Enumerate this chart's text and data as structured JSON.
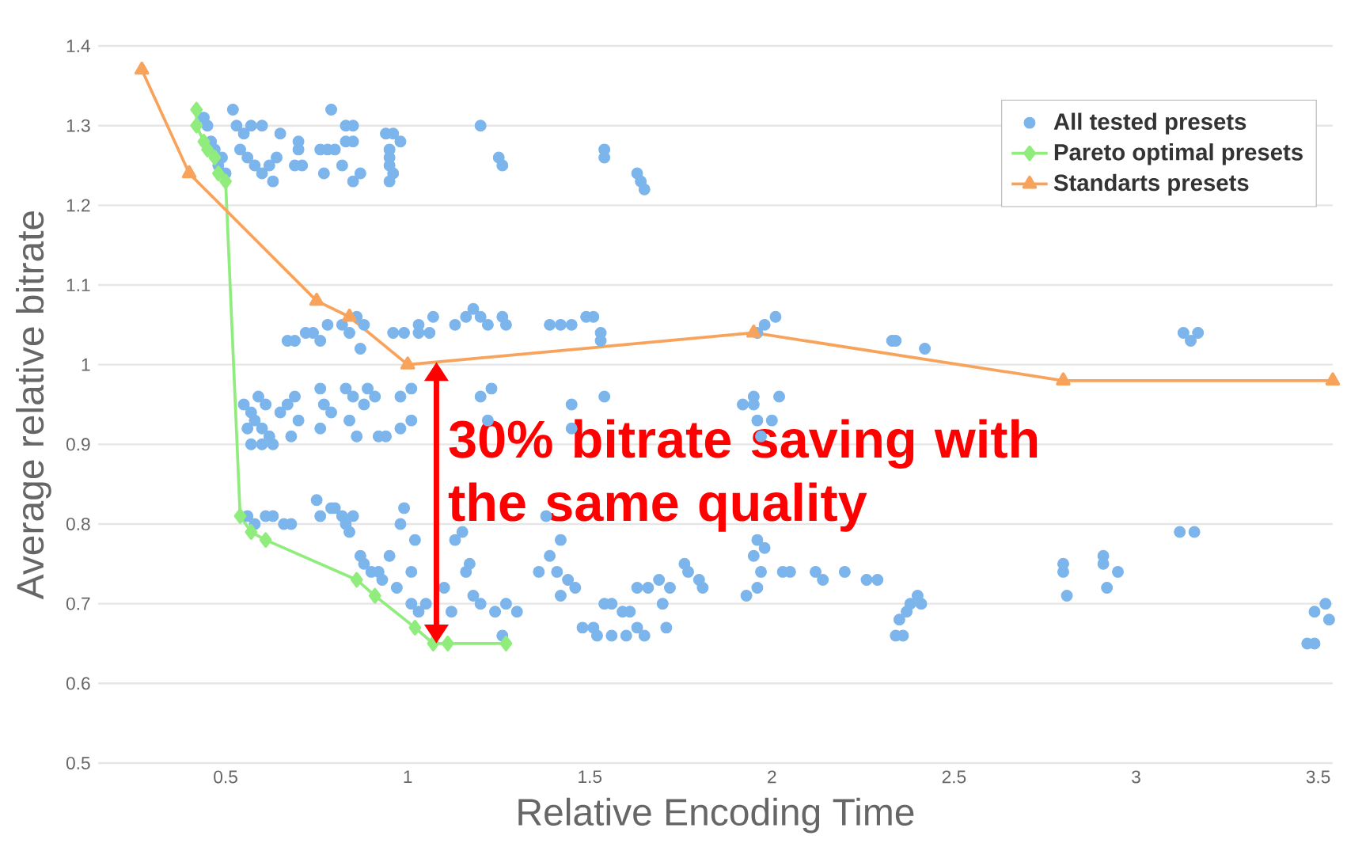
{
  "chart_data": {
    "type": "scatter",
    "xlabel": "Relative Encoding Time",
    "ylabel": "Average relative bitrate",
    "xlim": [
      0.15,
      3.54
    ],
    "ylim": [
      0.5,
      1.4
    ],
    "xticks": [
      0.5,
      1,
      1.5,
      2,
      2.5,
      3,
      3.5
    ],
    "yticks": [
      0.5,
      0.6,
      0.7,
      0.8,
      0.9,
      1,
      1.1,
      1.2,
      1.3,
      1.4
    ],
    "grid": "y",
    "legend": "top right",
    "annotations": [
      "30% bitrate saving with the same quality"
    ],
    "series": [
      {
        "name": "All tested presets",
        "marker": "circle",
        "color": "#7cb5ec",
        "x": [
          0.44,
          0.45,
          0.46,
          0.47,
          0.48,
          0.5,
          0.49,
          0.52,
          0.53,
          0.55,
          0.57,
          0.6,
          0.54,
          0.56,
          0.58,
          0.6,
          0.62,
          0.64,
          0.63,
          0.65,
          0.7,
          0.7,
          0.71,
          0.69,
          0.76,
          0.78,
          0.8,
          0.77,
          0.79,
          0.83,
          0.85,
          0.83,
          0.85,
          0.82,
          0.85,
          0.87,
          0.94,
          0.96,
          0.95,
          0.95,
          0.95,
          0.96,
          0.95,
          0.98,
          1.2,
          1.25,
          1.26,
          1.54,
          1.54,
          1.63,
          1.64,
          1.65,
          0.67,
          0.69,
          0.72,
          0.74,
          0.76,
          0.78,
          0.82,
          0.84,
          0.86,
          0.88,
          0.87,
          0.96,
          0.99,
          1.03,
          1.03,
          1.06,
          1.07,
          1.13,
          1.16,
          1.18,
          1.2,
          1.22,
          1.26,
          1.27,
          1.39,
          1.42,
          1.45,
          1.49,
          1.51,
          1.53,
          1.53,
          1.96,
          1.98,
          2.01,
          2.33,
          2.34,
          2.42,
          3.13,
          3.15,
          3.17,
          0.55,
          0.57,
          0.59,
          0.61,
          0.56,
          0.58,
          0.6,
          0.62,
          0.57,
          0.6,
          0.63,
          0.65,
          0.67,
          0.69,
          0.7,
          0.68,
          0.76,
          0.77,
          0.76,
          0.79,
          0.83,
          0.85,
          0.84,
          0.86,
          0.88,
          0.89,
          0.91,
          0.92,
          0.94,
          0.98,
          1.01,
          1.01,
          0.98,
          1.2,
          1.23,
          1.22,
          1.45,
          1.45,
          1.54,
          1.92,
          1.95,
          1.95,
          2.02,
          1.96,
          2.0,
          1.97,
          0.56,
          0.58,
          0.61,
          0.63,
          0.66,
          0.68,
          0.75,
          0.76,
          0.79,
          0.8,
          0.82,
          0.83,
          0.85,
          0.84,
          0.87,
          0.88,
          0.9,
          0.92,
          0.93,
          0.95,
          0.98,
          0.99,
          1.02,
          0.97,
          1.01,
          1.01,
          1.03,
          1.05,
          1.08,
          1.12,
          1.1,
          1.13,
          1.15,
          1.17,
          1.16,
          1.18,
          1.2,
          1.24,
          1.27,
          1.3,
          1.26,
          1.36,
          1.39,
          1.41,
          1.42,
          1.42,
          1.44,
          1.46,
          1.38,
          1.48,
          1.51,
          1.52,
          1.54,
          1.56,
          1.59,
          1.61,
          1.63,
          1.56,
          1.6,
          1.65,
          1.63,
          1.66,
          1.69,
          1.7,
          1.71,
          1.72,
          1.76,
          1.77,
          1.8,
          1.81,
          1.93,
          1.96,
          1.95,
          1.96,
          1.98,
          1.97,
          2.03,
          2.05,
          2.12,
          2.14,
          2.2,
          2.26,
          2.29,
          2.34,
          2.36,
          2.35,
          2.37,
          2.38,
          2.4,
          2.41,
          2.8,
          2.8,
          2.81,
          2.91,
          2.91,
          2.92,
          2.95,
          3.12,
          3.16,
          3.47,
          3.49,
          3.49,
          3.52,
          3.53
        ],
        "values": [
          1.31,
          1.3,
          1.28,
          1.27,
          1.25,
          1.24,
          1.26,
          1.32,
          1.3,
          1.29,
          1.3,
          1.3,
          1.27,
          1.26,
          1.25,
          1.24,
          1.25,
          1.26,
          1.23,
          1.29,
          1.28,
          1.27,
          1.25,
          1.25,
          1.27,
          1.27,
          1.27,
          1.24,
          1.32,
          1.3,
          1.3,
          1.28,
          1.28,
          1.25,
          1.23,
          1.24,
          1.29,
          1.29,
          1.27,
          1.26,
          1.25,
          1.24,
          1.23,
          1.28,
          1.3,
          1.26,
          1.25,
          1.27,
          1.26,
          1.24,
          1.23,
          1.22,
          1.03,
          1.03,
          1.04,
          1.04,
          1.03,
          1.05,
          1.05,
          1.04,
          1.06,
          1.05,
          1.02,
          1.04,
          1.04,
          1.04,
          1.05,
          1.04,
          1.06,
          1.05,
          1.06,
          1.07,
          1.06,
          1.05,
          1.06,
          1.05,
          1.05,
          1.05,
          1.05,
          1.06,
          1.06,
          1.04,
          1.03,
          1.04,
          1.05,
          1.06,
          1.03,
          1.03,
          1.02,
          1.04,
          1.03,
          1.04,
          0.95,
          0.94,
          0.96,
          0.95,
          0.92,
          0.93,
          0.92,
          0.91,
          0.9,
          0.9,
          0.9,
          0.94,
          0.95,
          0.96,
          0.93,
          0.91,
          0.97,
          0.95,
          0.92,
          0.94,
          0.97,
          0.96,
          0.93,
          0.91,
          0.95,
          0.97,
          0.96,
          0.91,
          0.91,
          0.96,
          0.97,
          0.93,
          0.92,
          0.96,
          0.97,
          0.93,
          0.95,
          0.92,
          0.96,
          0.95,
          0.95,
          0.96,
          0.96,
          0.93,
          0.93,
          0.91,
          0.81,
          0.8,
          0.81,
          0.81,
          0.8,
          0.8,
          0.83,
          0.81,
          0.82,
          0.82,
          0.81,
          0.8,
          0.81,
          0.79,
          0.76,
          0.75,
          0.74,
          0.74,
          0.73,
          0.76,
          0.8,
          0.82,
          0.78,
          0.72,
          0.74,
          0.7,
          0.69,
          0.7,
          null,
          0.69,
          0.72,
          0.78,
          0.79,
          0.75,
          0.74,
          0.71,
          0.7,
          0.69,
          0.7,
          0.69,
          0.66,
          0.74,
          0.76,
          0.74,
          0.78,
          0.71,
          0.73,
          0.72,
          0.81,
          0.67,
          0.67,
          0.66,
          0.7,
          0.7,
          0.69,
          0.69,
          0.67,
          0.66,
          0.66,
          0.66,
          0.72,
          0.72,
          0.73,
          0.7,
          0.67,
          0.72,
          0.75,
          0.74,
          0.73,
          0.72,
          0.71,
          0.72,
          0.76,
          0.78,
          0.77,
          0.74,
          0.74,
          0.74,
          0.74,
          0.73,
          0.74,
          0.73,
          0.73,
          0.66,
          0.66,
          0.68,
          0.69,
          0.7,
          0.71,
          0.7,
          0.75,
          0.74,
          0.71,
          0.76,
          0.75,
          0.72,
          0.74,
          0.79,
          0.79,
          0.65,
          0.65,
          0.69,
          0.7,
          0.68
        ]
      },
      {
        "name": "Pareto optimal presets",
        "type": "line",
        "marker": "diamond",
        "color": "#90ed7d",
        "x": [
          0.42,
          0.42,
          0.44,
          0.45,
          0.47,
          0.48,
          0.5,
          0.54,
          0.57,
          0.61,
          0.86,
          0.91,
          1.02,
          1.07,
          1.11,
          1.27
        ],
        "values": [
          1.32,
          1.3,
          1.28,
          1.27,
          1.26,
          1.24,
          1.23,
          0.81,
          0.79,
          0.78,
          0.73,
          0.71,
          0.67,
          0.65,
          0.65,
          0.65
        ]
      },
      {
        "name": "Standarts presets",
        "type": "line",
        "marker": "triangle",
        "color": "#f7a35c",
        "x": [
          0.27,
          0.4,
          0.75,
          0.84,
          1.0,
          1.95,
          2.8,
          3.54
        ],
        "values": [
          1.37,
          1.24,
          1.08,
          1.06,
          1.0,
          1.04,
          0.98,
          0.98
        ]
      }
    ]
  }
}
